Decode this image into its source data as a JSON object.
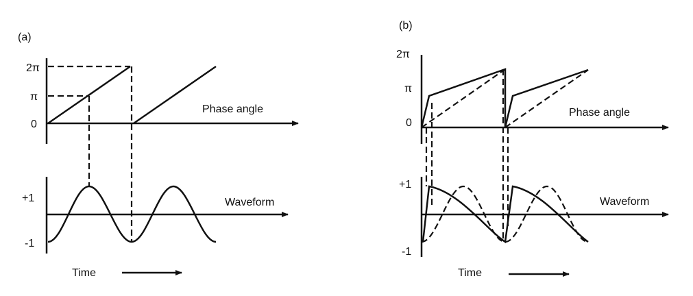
{
  "panels": [
    {
      "label": "(a)",
      "phase": {
        "ticks": [
          "2π",
          "π",
          "0"
        ],
        "title": "Phase angle"
      },
      "waveform": {
        "ticks": [
          "+1",
          "-1"
        ],
        "title": "Waveform"
      },
      "time": "Time"
    },
    {
      "label": "(b)",
      "phase": {
        "ticks": [
          "2π",
          "π",
          "0"
        ],
        "title": "Phase angle"
      },
      "waveform": {
        "ticks": [
          "+1",
          "-1"
        ],
        "title": "Waveform"
      },
      "time": "Time"
    }
  ]
}
